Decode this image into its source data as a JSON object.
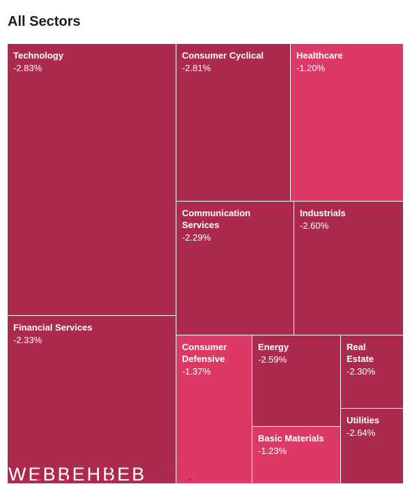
{
  "header": {
    "title": "All Sectors"
  },
  "colors": {
    "strong_decline": "#ad2a4f",
    "mild_decline": "#dc3a64",
    "watermark_text": "#ffffff",
    "watermark_dots": "#d8222f"
  },
  "watermark": {
    "text": "WEBBEHBEB"
  },
  "chart_data": {
    "type": "treemap",
    "title": "All Sectors",
    "sectors": [
      {
        "name": "Technology",
        "change": "-2.83%",
        "value_pct": -2.83
      },
      {
        "name": "Financial Services",
        "change": "-2.33%",
        "value_pct": -2.33
      },
      {
        "name": "Consumer Cyclical",
        "change": "-2.81%",
        "value_pct": -2.81
      },
      {
        "name": "Healthcare",
        "change": "-1.20%",
        "value_pct": -1.2
      },
      {
        "name": "Communication Services",
        "change": "-2.29%",
        "value_pct": -2.29
      },
      {
        "name": "Industrials",
        "change": "-2.60%",
        "value_pct": -2.6
      },
      {
        "name": "Consumer Defensive",
        "change": "-1.37%",
        "value_pct": -1.37
      },
      {
        "name": "Energy",
        "change": "-2.59%",
        "value_pct": -2.59
      },
      {
        "name": "Basic Materials",
        "change": "-1.23%",
        "value_pct": -1.23
      },
      {
        "name": "Real Estate",
        "change": "-2.30%",
        "value_pct": -2.3
      },
      {
        "name": "Utilities",
        "change": "-2.64%",
        "value_pct": -2.64
      }
    ]
  }
}
